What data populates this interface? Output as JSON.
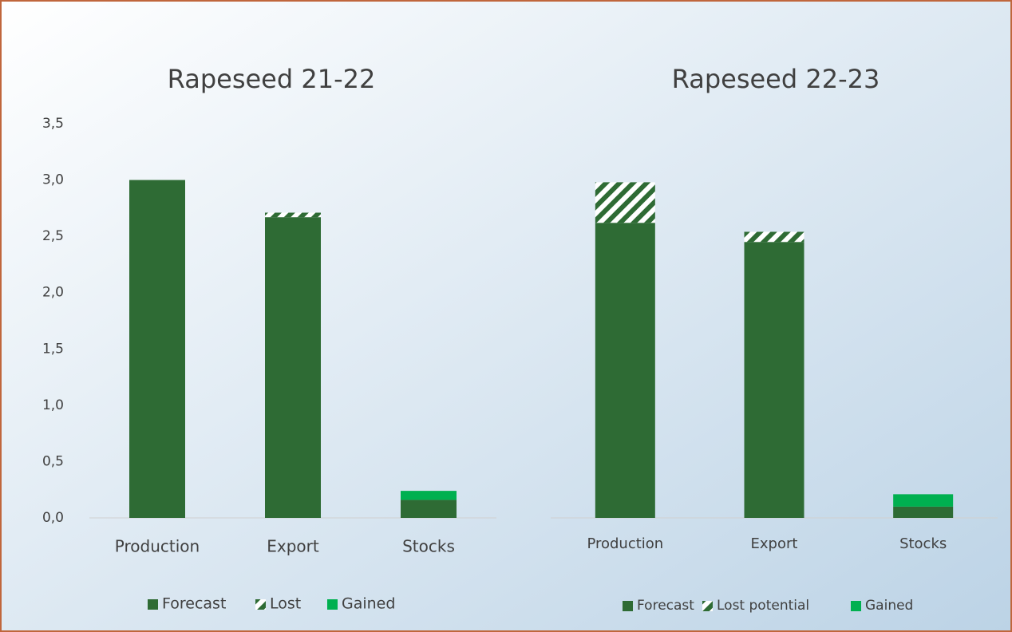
{
  "chart_data": [
    {
      "type": "stacked_bar",
      "title": "Rapeseed 21-22",
      "categories": [
        "Production",
        "Export",
        "Stocks"
      ],
      "series": [
        {
          "name": "Forecast",
          "color": "#2e6b34",
          "values": [
            3.0,
            2.67,
            0.16
          ]
        },
        {
          "name": "Lost",
          "color": "#2e6b34",
          "pattern": "diagonal-stripes",
          "values": [
            0,
            0.04,
            0
          ]
        },
        {
          "name": "Gained",
          "color": "#00b050",
          "values": [
            0,
            0,
            0.08
          ]
        }
      ],
      "ylim": [
        0,
        3.5
      ],
      "yticks": [
        {
          "value": 0,
          "label": "0,0"
        },
        {
          "value": 0.5,
          "label": "0,5"
        },
        {
          "value": 1,
          "label": "1,0"
        },
        {
          "value": 1.5,
          "label": "1,5"
        },
        {
          "value": 2,
          "label": "2,0"
        },
        {
          "value": 2.5,
          "label": "2,5"
        },
        {
          "value": 3,
          "label": "3,0"
        },
        {
          "value": 3.5,
          "label": "3,5"
        }
      ],
      "legend": "bottom"
    },
    {
      "type": "stacked_bar",
      "title": "Rapeseed 22-23",
      "categories": [
        "Production",
        "Export",
        "Stocks"
      ],
      "series": [
        {
          "name": "Forecast",
          "color": "#2e6b34",
          "values": [
            2.62,
            2.45,
            0.1
          ]
        },
        {
          "name": "Lost potential",
          "color": "#2e6b34",
          "pattern": "diagonal-stripes",
          "values": [
            0.36,
            0.09,
            0
          ]
        },
        {
          "name": "Gained",
          "color": "#00b050",
          "values": [
            0,
            0,
            0.11
          ]
        }
      ],
      "ylim": [
        0,
        3.5
      ],
      "legend": "bottom"
    }
  ]
}
